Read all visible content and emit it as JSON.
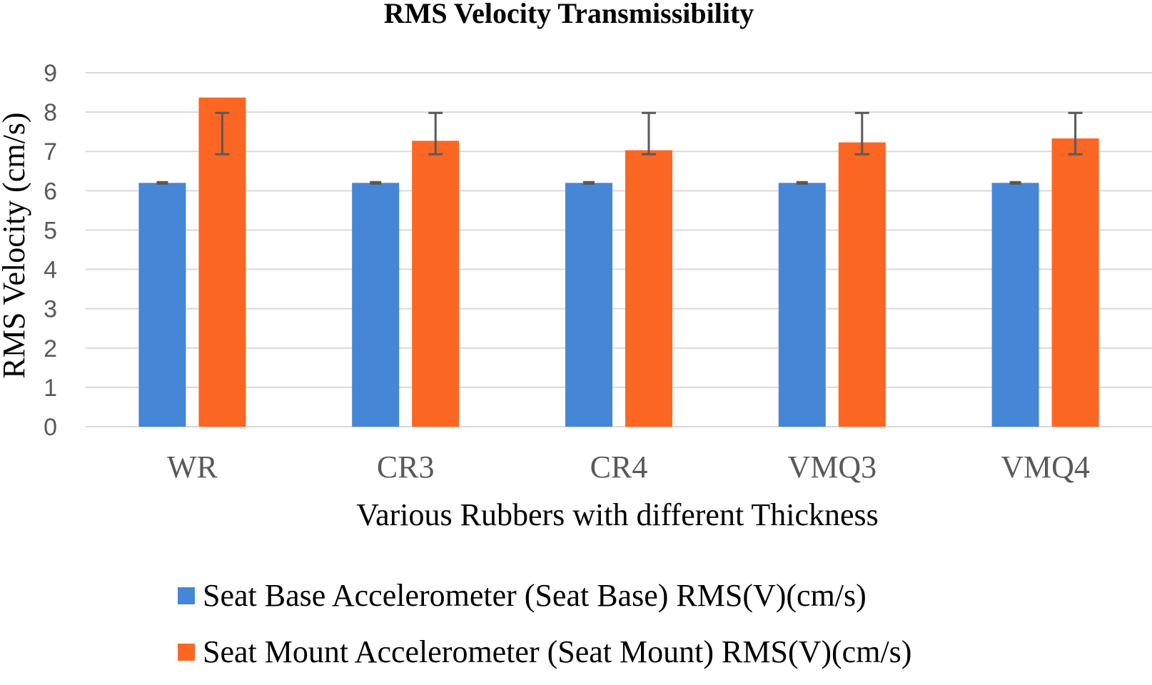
{
  "chart_data": {
    "type": "bar",
    "title": "RMS Velocity Transmissibility",
    "xlabel": "Various Rubbers  with different Thickness",
    "ylabel": "RMS Velocity (cm/s)",
    "ylim": [
      0,
      9
    ],
    "yticks": [
      "0",
      "1",
      "2",
      "3",
      "4",
      "5",
      "6",
      "7",
      "8",
      "9"
    ],
    "grid": true,
    "legend_position": "bottom",
    "categories": [
      "WR",
      "CR3",
      "CR4",
      "VMQ3",
      "VMQ4"
    ],
    "series": [
      {
        "name": "Seat Base Accelerometer (Seat Base) RMS(V)(cm/s)",
        "color": "#4686d6",
        "values": [
          6.2,
          6.2,
          6.2,
          6.2,
          6.2
        ],
        "error_low": [
          6.18,
          6.18,
          6.18,
          6.18,
          6.18
        ],
        "error_high": [
          6.22,
          6.22,
          6.22,
          6.22,
          6.22
        ]
      },
      {
        "name": "Seat Mount Accelerometer (Seat Mount) RMS(V)(cm/s)",
        "color": "#fc6623",
        "values": [
          8.37,
          7.27,
          7.03,
          7.23,
          7.33
        ],
        "error_low": [
          6.93,
          6.93,
          6.93,
          6.93,
          6.93
        ],
        "error_high": [
          7.98,
          7.98,
          7.98,
          7.98,
          7.98
        ]
      }
    ],
    "gridline_color": "#d9d9d9",
    "errorbar_color": "#595959"
  }
}
